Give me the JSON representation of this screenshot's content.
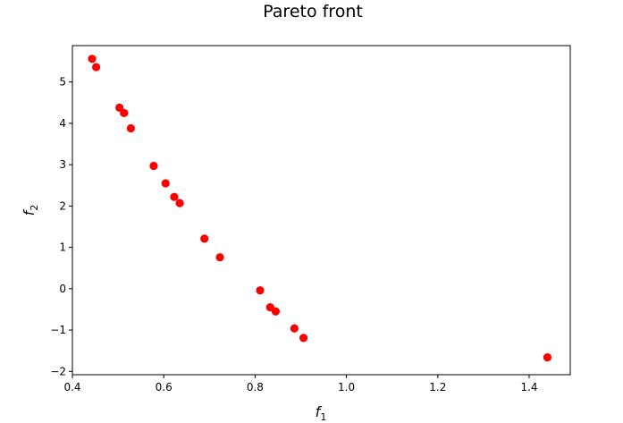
{
  "chart_data": {
    "type": "scatter",
    "title": "Pareto front",
    "xlabel": {
      "symbol": "f",
      "subscript": "1"
    },
    "ylabel": {
      "symbol": "f",
      "subscript": "2"
    },
    "xlim": [
      0.4,
      1.49
    ],
    "ylim": [
      -2.08,
      5.88
    ],
    "xticks": [
      0.4,
      0.6,
      0.8,
      1.0,
      1.2,
      1.4
    ],
    "xtick_labels": [
      "0.4",
      "0.6",
      "0.8",
      "1.0",
      "1.2",
      "1.4"
    ],
    "yticks": [
      -2,
      -1,
      0,
      1,
      2,
      3,
      4,
      5
    ],
    "ytick_labels": [
      "−2",
      "−1",
      "0",
      "1",
      "2",
      "3",
      "4",
      "5"
    ],
    "grid": false,
    "marker_color": "#ff0000",
    "points": [
      {
        "x": 0.443,
        "y": 5.56
      },
      {
        "x": 0.452,
        "y": 5.36
      },
      {
        "x": 0.503,
        "y": 4.38
      },
      {
        "x": 0.513,
        "y": 4.25
      },
      {
        "x": 0.528,
        "y": 3.88
      },
      {
        "x": 0.578,
        "y": 2.97
      },
      {
        "x": 0.604,
        "y": 2.55
      },
      {
        "x": 0.623,
        "y": 2.22
      },
      {
        "x": 0.635,
        "y": 2.07
      },
      {
        "x": 0.689,
        "y": 1.21
      },
      {
        "x": 0.723,
        "y": 0.76
      },
      {
        "x": 0.811,
        "y": -0.04
      },
      {
        "x": 0.833,
        "y": -0.45
      },
      {
        "x": 0.845,
        "y": -0.55
      },
      {
        "x": 0.886,
        "y": -0.96
      },
      {
        "x": 0.906,
        "y": -1.19
      },
      {
        "x": 1.44,
        "y": -1.66
      }
    ]
  }
}
